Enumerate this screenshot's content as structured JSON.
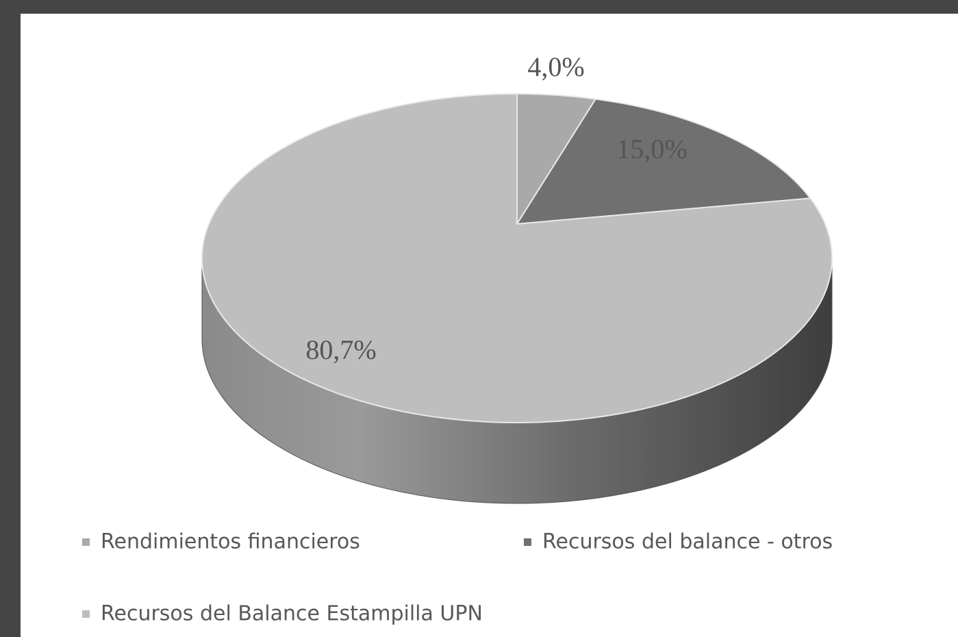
{
  "chart_data": {
    "type": "pie",
    "categories": [
      "Rendimientos financieros",
      "Recursos del balance - otros",
      "Recursos del Balance Estampilla UPN"
    ],
    "values": [
      4.0,
      15.0,
      80.7
    ],
    "value_labels": [
      "4,0%",
      "15,0%",
      "80,7%"
    ],
    "colors": [
      "#a9a9a9",
      "#707070",
      "#bebebe"
    ],
    "legend": "bottom"
  }
}
